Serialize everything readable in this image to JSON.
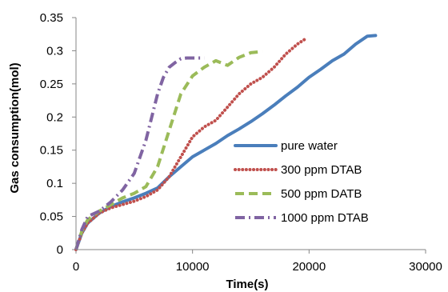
{
  "chart_data": {
    "type": "line",
    "xlabel": "Time(s)",
    "ylabel": "Gas consumption(mol)",
    "xlim": [
      0,
      30000
    ],
    "ylim": [
      0,
      0.35
    ],
    "xticks": [
      0,
      10000,
      20000,
      30000
    ],
    "yticks": [
      0,
      0.05,
      0.1,
      0.15,
      0.2,
      0.25,
      0.3,
      0.35
    ],
    "xtick_labels": [
      "0",
      "10000",
      "20000",
      "30000"
    ],
    "ytick_labels": [
      "0",
      "0.05",
      "0.1",
      "0.15",
      "0.2",
      "0.25",
      "0.3",
      "0.35"
    ],
    "grid": false,
    "legend_position": "right",
    "series": [
      {
        "name": "pure water",
        "color": "#4a7ebb",
        "style": "solid",
        "x": [
          0,
          500,
          1000,
          2000,
          3000,
          4000,
          5000,
          6000,
          7000,
          8000,
          9000,
          10000,
          11000,
          12000,
          13000,
          14000,
          15000,
          16000,
          17000,
          18000,
          19000,
          20000,
          21000,
          22000,
          23000,
          24000,
          25000,
          25700
        ],
        "y": [
          0,
          0.025,
          0.04,
          0.055,
          0.065,
          0.072,
          0.078,
          0.085,
          0.093,
          0.11,
          0.125,
          0.14,
          0.15,
          0.16,
          0.172,
          0.182,
          0.193,
          0.205,
          0.218,
          0.232,
          0.245,
          0.26,
          0.272,
          0.285,
          0.295,
          0.31,
          0.322,
          0.323
        ]
      },
      {
        "name": "300 ppm DTAB",
        "color": "#c0504d",
        "style": "dotted",
        "x": [
          0,
          500,
          1000,
          2000,
          3000,
          4000,
          5000,
          6000,
          7000,
          8000,
          9000,
          10000,
          11000,
          12000,
          13000,
          14000,
          15000,
          16000,
          17000,
          18000,
          19000,
          19700
        ],
        "y": [
          0,
          0.025,
          0.04,
          0.055,
          0.063,
          0.068,
          0.073,
          0.08,
          0.09,
          0.11,
          0.14,
          0.17,
          0.185,
          0.195,
          0.215,
          0.235,
          0.25,
          0.26,
          0.275,
          0.295,
          0.31,
          0.318
        ]
      },
      {
        "name": "500 ppm DATB",
        "color": "#9bbb59",
        "style": "dashed",
        "x": [
          0,
          500,
          1000,
          2000,
          3000,
          4000,
          5000,
          6000,
          7000,
          8000,
          9000,
          10000,
          11000,
          12000,
          13000,
          14000,
          15000,
          16000
        ],
        "y": [
          0,
          0.028,
          0.045,
          0.058,
          0.068,
          0.078,
          0.085,
          0.095,
          0.125,
          0.18,
          0.235,
          0.262,
          0.275,
          0.285,
          0.278,
          0.29,
          0.297,
          0.299
        ]
      },
      {
        "name": "1000 ppm DTAB",
        "color": "#8064a2",
        "style": "dashdot",
        "x": [
          0,
          500,
          1000,
          2000,
          3000,
          4000,
          5000,
          5500,
          6000,
          6500,
          7000,
          7500,
          8000,
          8500,
          9000,
          9500,
          10000,
          10500,
          11000
        ],
        "y": [
          0,
          0.03,
          0.05,
          0.058,
          0.072,
          0.09,
          0.115,
          0.14,
          0.165,
          0.2,
          0.235,
          0.26,
          0.275,
          0.282,
          0.288,
          0.289,
          0.289,
          0.289,
          0.289
        ]
      }
    ]
  }
}
